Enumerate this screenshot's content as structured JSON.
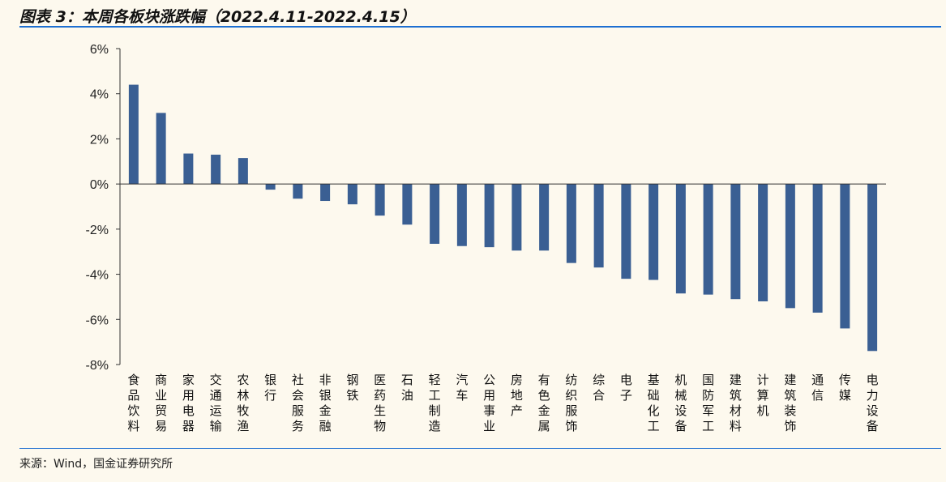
{
  "header": {
    "title": "图表 3：本周各板块涨跌幅（2022.4.11-2022.4.15）"
  },
  "footer": {
    "source": "来源：Wind，国金证券研究所"
  },
  "colors": {
    "bar": "#3a5f93",
    "accent_rule": "#1d6fd1",
    "background": "#fdf9ee"
  },
  "chart_data": {
    "type": "bar",
    "title": "",
    "xlabel": "",
    "ylabel": "",
    "ylim": [
      -8,
      6
    ],
    "yticks": [
      6,
      4,
      2,
      0,
      -2,
      -4,
      -6,
      -8
    ],
    "ytick_labels": [
      "6%",
      "4%",
      "2%",
      "0%",
      "-2%",
      "-4%",
      "-6%",
      "-8%"
    ],
    "grid": false,
    "categories": [
      "食品饮料",
      "商业贸易",
      "家用电器",
      "交通运输",
      "农林牧渔",
      "银行",
      "社会服务",
      "非银金融",
      "钢铁",
      "医药生物",
      "石油",
      "轻工制造",
      "汽车",
      "公用事业",
      "房地产",
      "有色金属",
      "纺织服饰",
      "综合",
      "电子",
      "基础化工",
      "机械设备",
      "国防军工",
      "建筑材料",
      "计算机",
      "建筑装饰",
      "通信",
      "传媒",
      "电力设备"
    ],
    "values": [
      4.4,
      3.15,
      1.35,
      1.3,
      1.15,
      -0.25,
      -0.65,
      -0.75,
      -0.9,
      -1.4,
      -1.8,
      -2.65,
      -2.75,
      -2.8,
      -2.95,
      -2.95,
      -3.5,
      -3.7,
      -4.2,
      -4.25,
      -4.85,
      -4.9,
      -5.1,
      -5.2,
      -5.5,
      -5.7,
      -6.4,
      -7.4
    ]
  }
}
